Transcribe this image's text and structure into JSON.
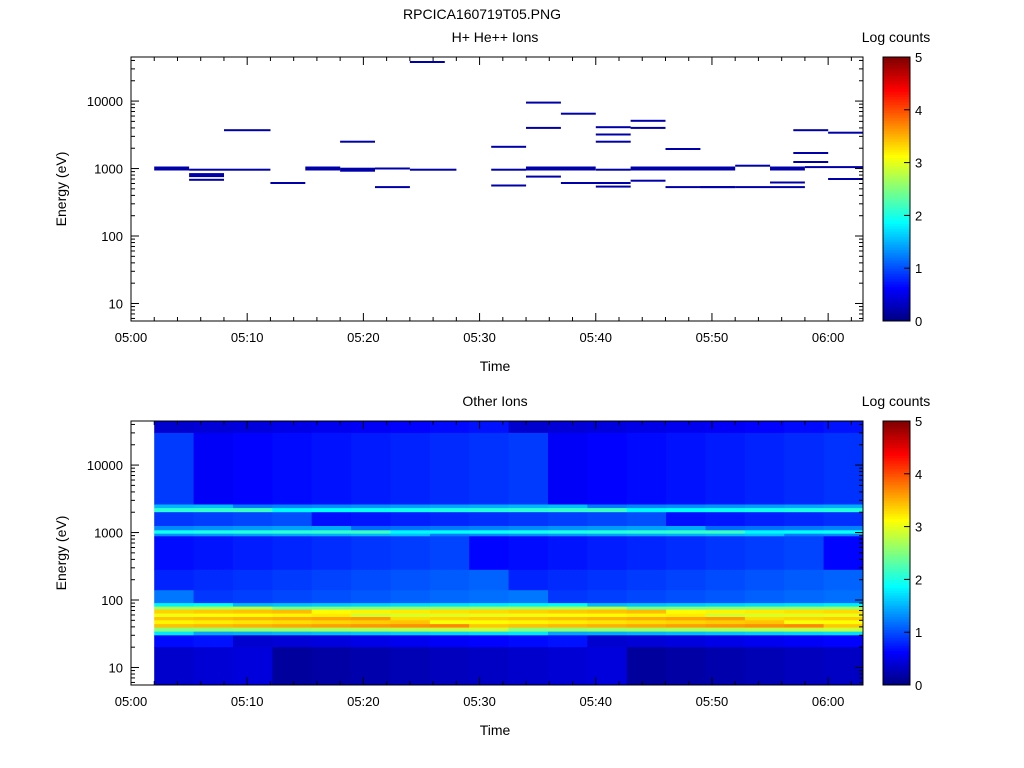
{
  "figure_title": "RPCICA160719T05.PNG",
  "chart_data": [
    {
      "type": "heatmap",
      "title": "H+ He++ Ions",
      "xlabel": "Time",
      "ylabel": "Energy (eV)",
      "xticks": [
        "05:00",
        "05:10",
        "05:20",
        "05:30",
        "05:40",
        "05:50",
        "06:00"
      ],
      "xlim": [
        "05:00",
        "06:03"
      ],
      "yscale": "log",
      "ylim": [
        5.5,
        45000
      ],
      "yticks": [
        "10",
        "100",
        "1000",
        "10000"
      ],
      "colorbar": {
        "label": "Log counts",
        "range": [
          0,
          5
        ],
        "ticks": [
          "0",
          "1",
          "2",
          "3",
          "4",
          "5"
        ]
      },
      "segments": [
        {
          "t0": "05:02",
          "t1": "05:05",
          "energy": 1000,
          "log_counts": 0.2,
          "thick": 2
        },
        {
          "t0": "05:05",
          "t1": "05:08",
          "energy": 800,
          "log_counts": 0.2,
          "thick": 2
        },
        {
          "t0": "05:05",
          "t1": "05:08",
          "energy": 680,
          "log_counts": 0.2
        },
        {
          "t0": "05:05",
          "t1": "05:12",
          "energy": 960,
          "log_counts": 0.2
        },
        {
          "t0": "05:08",
          "t1": "05:12",
          "energy": 3700,
          "log_counts": 0.2
        },
        {
          "t0": "05:12",
          "t1": "05:15",
          "energy": 610,
          "log_counts": 0.2
        },
        {
          "t0": "05:15",
          "t1": "05:18",
          "energy": 1000,
          "log_counts": 0.2,
          "thick": 2
        },
        {
          "t0": "05:18",
          "t1": "05:21",
          "energy": 960,
          "log_counts": 0.2,
          "thick": 2
        },
        {
          "t0": "05:18",
          "t1": "05:21",
          "energy": 2500,
          "log_counts": 0.2
        },
        {
          "t0": "05:21",
          "t1": "05:24",
          "energy": 1000,
          "log_counts": 0.2
        },
        {
          "t0": "05:21",
          "t1": "05:24",
          "energy": 530,
          "log_counts": 0.2
        },
        {
          "t0": "05:24",
          "t1": "05:28",
          "energy": 960,
          "log_counts": 0.2
        },
        {
          "t0": "05:24",
          "t1": "05:27",
          "energy": 38000,
          "log_counts": 0.2
        },
        {
          "t0": "05:31",
          "t1": "05:34",
          "energy": 2100,
          "log_counts": 0.2
        },
        {
          "t0": "05:31",
          "t1": "05:34",
          "energy": 960,
          "log_counts": 0.2
        },
        {
          "t0": "05:31",
          "t1": "05:34",
          "energy": 560,
          "log_counts": 0.2
        },
        {
          "t0": "05:34",
          "t1": "05:37",
          "energy": 9500,
          "log_counts": 0.2
        },
        {
          "t0": "05:34",
          "t1": "05:37",
          "energy": 4000,
          "log_counts": 0.2
        },
        {
          "t0": "05:34",
          "t1": "05:40",
          "energy": 1000,
          "log_counts": 0.2,
          "thick": 2
        },
        {
          "t0": "05:34",
          "t1": "05:37",
          "energy": 760,
          "log_counts": 0.2
        },
        {
          "t0": "05:37",
          "t1": "05:40",
          "energy": 6500,
          "log_counts": 0.2
        },
        {
          "t0": "05:37",
          "t1": "05:43",
          "energy": 610,
          "log_counts": 0.2
        },
        {
          "t0": "05:40",
          "t1": "05:43",
          "energy": 4100,
          "log_counts": 0.2
        },
        {
          "t0": "05:40",
          "t1": "05:43",
          "energy": 3200,
          "log_counts": 0.2
        },
        {
          "t0": "05:40",
          "t1": "05:43",
          "energy": 2500,
          "log_counts": 0.2
        },
        {
          "t0": "05:40",
          "t1": "05:43",
          "energy": 960,
          "log_counts": 0.2
        },
        {
          "t0": "05:40",
          "t1": "05:43",
          "energy": 540,
          "log_counts": 0.2
        },
        {
          "t0": "05:43",
          "t1": "05:46",
          "energy": 5100,
          "log_counts": 0.2
        },
        {
          "t0": "05:43",
          "t1": "05:46",
          "energy": 4000,
          "log_counts": 0.2
        },
        {
          "t0": "05:43",
          "t1": "05:52",
          "energy": 1000,
          "log_counts": 0.2,
          "thick": 2
        },
        {
          "t0": "05:43",
          "t1": "05:46",
          "energy": 660,
          "log_counts": 0.2
        },
        {
          "t0": "05:46",
          "t1": "05:49",
          "energy": 1950,
          "log_counts": 0.2
        },
        {
          "t0": "05:46",
          "t1": "05:52",
          "energy": 530,
          "log_counts": 0.2
        },
        {
          "t0": "05:49",
          "t1": "05:52",
          "energy": 530,
          "log_counts": 0.2
        },
        {
          "t0": "05:52",
          "t1": "05:55",
          "energy": 1100,
          "log_counts": 0.2
        },
        {
          "t0": "05:52",
          "t1": "05:55",
          "energy": 530,
          "log_counts": 0.2
        },
        {
          "t0": "05:55",
          "t1": "05:58",
          "energy": 1000,
          "log_counts": 0.2,
          "thick": 2
        },
        {
          "t0": "05:55",
          "t1": "05:58",
          "energy": 620,
          "log_counts": 0.2
        },
        {
          "t0": "05:55",
          "t1": "05:58",
          "energy": 530,
          "log_counts": 0.2
        },
        {
          "t0": "05:57",
          "t1": "06:00",
          "energy": 3700,
          "log_counts": 0.2
        },
        {
          "t0": "05:57",
          "t1": "06:00",
          "energy": 1700,
          "log_counts": 0.2
        },
        {
          "t0": "05:57",
          "t1": "06:00",
          "energy": 1250,
          "log_counts": 0.2
        },
        {
          "t0": "05:58",
          "t1": "06:03",
          "energy": 1050,
          "log_counts": 0.2
        },
        {
          "t0": "06:00",
          "t1": "06:03",
          "energy": 3400,
          "log_counts": 0.2
        },
        {
          "t0": "06:00",
          "t1": "06:03",
          "energy": 700,
          "log_counts": 0.2
        }
      ]
    },
    {
      "type": "heatmap",
      "title": "Other Ions",
      "xlabel": "Time",
      "ylabel": "Energy (eV)",
      "xticks": [
        "05:00",
        "05:10",
        "05:20",
        "05:30",
        "05:40",
        "05:50",
        "06:00"
      ],
      "xlim": [
        "05:00",
        "06:03"
      ],
      "yscale": "log",
      "ylim": [
        5.5,
        45000
      ],
      "yticks": [
        "10",
        "100",
        "1000",
        "10000"
      ],
      "colorbar": {
        "label": "Log counts",
        "range": [
          0,
          5
        ],
        "ticks": [
          "0",
          "1",
          "2",
          "3",
          "4",
          "5"
        ]
      },
      "time_range": [
        "05:02",
        "06:03"
      ],
      "time_columns": 18,
      "energy_profile": [
        {
          "from": 45000,
          "to": 30000,
          "log_counts": 0.55
        },
        {
          "from": 30000,
          "to": 2600,
          "log_counts": 0.75
        },
        {
          "from": 2600,
          "to": 2300,
          "log_counts": 1.4
        },
        {
          "from": 2300,
          "to": 2000,
          "log_counts": 2.0
        },
        {
          "from": 2000,
          "to": 1250,
          "log_counts": 0.85
        },
        {
          "from": 1250,
          "to": 1080,
          "log_counts": 1.3
        },
        {
          "from": 1080,
          "to": 960,
          "log_counts": 2.0
        },
        {
          "from": 960,
          "to": 880,
          "log_counts": 1.4
        },
        {
          "from": 880,
          "to": 280,
          "log_counts": 0.8
        },
        {
          "from": 280,
          "to": 140,
          "log_counts": 0.95
        },
        {
          "from": 140,
          "to": 90,
          "log_counts": 1.05
        },
        {
          "from": 90,
          "to": 80,
          "log_counts": 1.7
        },
        {
          "from": 80,
          "to": 72,
          "log_counts": 2.6
        },
        {
          "from": 72,
          "to": 63,
          "log_counts": 3.3
        },
        {
          "from": 63,
          "to": 56,
          "log_counts": 3.05
        },
        {
          "from": 56,
          "to": 50,
          "log_counts": 3.45
        },
        {
          "from": 50,
          "to": 44,
          "log_counts": 3.25
        },
        {
          "from": 44,
          "to": 39,
          "log_counts": 3.55
        },
        {
          "from": 39,
          "to": 34,
          "log_counts": 2.7
        },
        {
          "from": 34,
          "to": 30,
          "log_counts": 1.6
        },
        {
          "from": 30,
          "to": 20,
          "log_counts": 0.55
        },
        {
          "from": 20,
          "to": 5.5,
          "log_counts": 0.3
        }
      ]
    }
  ]
}
